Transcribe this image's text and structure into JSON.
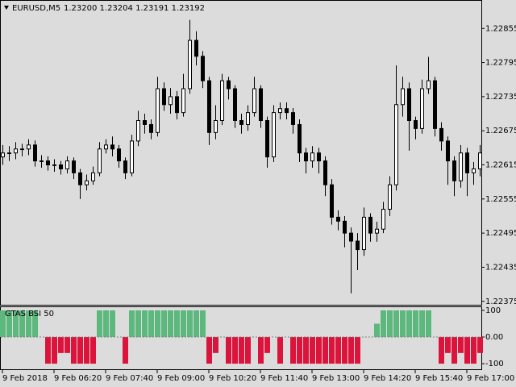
{
  "chart_data": [
    {
      "type": "candlestick",
      "symbol": "EURUSD,M5",
      "quote": "1.23200 1.23204 1.23191 1.23192",
      "ylim": [
        1.22369,
        1.22905
      ],
      "yticks": [
        1.22855,
        1.22795,
        1.22735,
        1.22675,
        1.22615,
        1.22555,
        1.22495,
        1.22435,
        1.22375
      ],
      "xticks": [
        {
          "value": 0,
          "label": "9 Feb 2018"
        },
        {
          "value": 8,
          "label": "9 Feb 06:20"
        },
        {
          "value": 16,
          "label": "9 Feb 07:40"
        },
        {
          "value": 24,
          "label": "9 Feb 09:00"
        },
        {
          "value": 32,
          "label": "9 Feb 10:20"
        },
        {
          "value": 40,
          "label": "9 Feb 11:40"
        },
        {
          "value": 48,
          "label": "9 Feb 13:00"
        },
        {
          "value": 56,
          "label": "9 Feb 14:20"
        },
        {
          "value": 64,
          "label": "9 Feb 15:40"
        },
        {
          "value": 72,
          "label": "9 Feb 17:00"
        }
      ],
      "open": [
        1.22629,
        1.22636,
        1.22636,
        1.22643,
        1.22643,
        1.2265,
        1.22622,
        1.22622,
        1.22615,
        1.22615,
        1.22608,
        1.22622,
        1.22601,
        1.2258,
        1.22587,
        1.22601,
        1.22643,
        1.2265,
        1.22643,
        1.22622,
        1.22601,
        1.22657,
        1.22693,
        1.22686,
        1.22672,
        1.22749,
        1.22721,
        1.22735,
        1.22707,
        1.22749,
        1.22834,
        1.22806,
        1.22763,
        1.22672,
        1.22693,
        1.22763,
        1.22749,
        1.22693,
        1.22686,
        1.22707,
        1.22749,
        1.22693,
        1.22629,
        1.22707,
        1.22714,
        1.22707,
        1.22686,
        1.22636,
        1.22622,
        1.22636,
        1.22622,
        1.2258,
        1.22523,
        1.22516,
        1.22495,
        1.22481,
        1.22466,
        1.22523,
        1.22495,
        1.22502,
        1.22537,
        1.2258,
        1.22721,
        1.22749,
        1.22693,
        1.22679,
        1.22749,
        1.22763,
        1.22679,
        1.22657,
        1.22622,
        1.22587,
        1.22636,
        1.22601,
        1.22608
      ],
      "high": [
        1.2265,
        1.22648,
        1.22655,
        1.22652,
        1.2266,
        1.22658,
        1.22632,
        1.2263,
        1.22625,
        1.22622,
        1.2263,
        1.22628,
        1.22608,
        1.22598,
        1.22612,
        1.22655,
        1.2266,
        1.22665,
        1.2265,
        1.22628,
        1.22668,
        1.2271,
        1.22705,
        1.22695,
        1.2277,
        1.2276,
        1.2275,
        1.22745,
        1.22775,
        1.2287,
        1.2285,
        1.22815,
        1.2277,
        1.2272,
        1.22775,
        1.2277,
        1.22755,
        1.22705,
        1.2272,
        1.2277,
        1.22755,
        1.227,
        1.2272,
        1.22725,
        1.22725,
        1.22715,
        1.22695,
        1.22645,
        1.22648,
        1.22645,
        1.2263,
        1.2259,
        1.22535,
        1.22525,
        1.22505,
        1.22495,
        1.2254,
        1.2253,
        1.22515,
        1.2255,
        1.22595,
        1.2279,
        1.2277,
        1.2276,
        1.227,
        1.22765,
        1.22805,
        1.2277,
        1.2269,
        1.22665,
        1.2263,
        1.2265,
        1.22645,
        1.2262,
        1.2265
      ],
      "low": [
        1.22615,
        1.22622,
        1.22625,
        1.2263,
        1.22632,
        1.22612,
        1.2261,
        1.22605,
        1.22603,
        1.22598,
        1.226,
        1.2259,
        1.22555,
        1.2257,
        1.2258,
        1.22595,
        1.22635,
        1.2263,
        1.2261,
        1.2259,
        1.22595,
        1.22648,
        1.2267,
        1.2266,
        1.22665,
        1.2271,
        1.22705,
        1.22695,
        1.227,
        1.2274,
        1.2279,
        1.2275,
        1.2265,
        1.2266,
        1.22685,
        1.2273,
        1.2268,
        1.2267,
        1.22675,
        1.227,
        1.2268,
        1.2261,
        1.2262,
        1.22695,
        1.22695,
        1.2267,
        1.2262,
        1.226,
        1.2261,
        1.226,
        1.2256,
        1.2251,
        1.225,
        1.2247,
        1.22389,
        1.2243,
        1.22455,
        1.2248,
        1.2248,
        1.22495,
        1.22525,
        1.2257,
        1.227,
        1.2264,
        1.2266,
        1.2267,
        1.2274,
        1.22665,
        1.2264,
        1.2258,
        1.2256,
        1.22575,
        1.2256,
        1.2258,
        1.22595
      ],
      "close": [
        1.22636,
        1.22636,
        1.22643,
        1.22643,
        1.2265,
        1.22622,
        1.22622,
        1.22615,
        1.22615,
        1.22608,
        1.22622,
        1.22601,
        1.2258,
        1.22587,
        1.22601,
        1.22643,
        1.2265,
        1.22643,
        1.22622,
        1.22601,
        1.22657,
        1.22693,
        1.22686,
        1.22672,
        1.22749,
        1.22721,
        1.22735,
        1.22707,
        1.22749,
        1.22834,
        1.22806,
        1.22763,
        1.22672,
        1.22693,
        1.22763,
        1.22749,
        1.22693,
        1.22686,
        1.22707,
        1.22749,
        1.22693,
        1.22629,
        1.22707,
        1.22714,
        1.22707,
        1.22686,
        1.22636,
        1.22622,
        1.22636,
        1.22622,
        1.2258,
        1.22523,
        1.22516,
        1.22495,
        1.22481,
        1.22466,
        1.22523,
        1.22495,
        1.22502,
        1.22537,
        1.2258,
        1.22721,
        1.22749,
        1.22693,
        1.22679,
        1.22749,
        1.22763,
        1.22679,
        1.22657,
        1.22622,
        1.22587,
        1.22636,
        1.22601,
        1.22608,
        1.22636
      ]
    },
    {
      "type": "bar",
      "title": "GTAS BSI 50",
      "ylim": [
        -121,
        115
      ],
      "yticks": [
        100,
        {
          "value": 0,
          "label": "0.00"
        },
        -100
      ],
      "levels": [
        0
      ],
      "pos_color": "#5cb87c",
      "neg_color": "#dc143c",
      "values": [
        100,
        100,
        100,
        100,
        100,
        100,
        0,
        -100,
        -100,
        -60,
        -60,
        -100,
        -100,
        -100,
        -100,
        100,
        100,
        100,
        0,
        -100,
        100,
        100,
        100,
        100,
        100,
        100,
        100,
        100,
        100,
        100,
        100,
        100,
        -100,
        -60,
        0,
        -100,
        -100,
        -100,
        -100,
        0,
        -100,
        -60,
        0,
        -100,
        0,
        -100,
        -100,
        -100,
        -100,
        -100,
        -100,
        -100,
        -100,
        -100,
        -100,
        -100,
        0,
        0,
        50,
        100,
        100,
        100,
        100,
        100,
        100,
        100,
        100,
        0,
        -100,
        -60,
        -100,
        -60,
        -100,
        -100,
        -60
      ]
    }
  ]
}
